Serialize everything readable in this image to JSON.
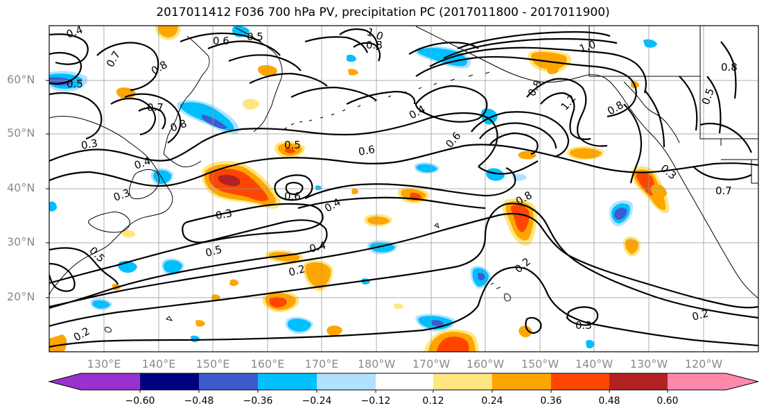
{
  "title": "2017011412 F036 700 hPa PV, precipitation PC (2017011800 - 2017011900)",
  "lat_labels": [
    "60°N",
    "50°N",
    "40°N",
    "30°N",
    "20°N"
  ],
  "lon_labels": [
    "130°E",
    "140°E",
    "150°E",
    "160°E",
    "170°E",
    "180°W",
    "170°W",
    "160°W",
    "150°W",
    "140°W",
    "130°W",
    "120°W"
  ],
  "colorbar": {
    "levels": [
      "−0.60",
      "−0.48",
      "−0.36",
      "−0.24",
      "−0.12",
      "0.12",
      "0.24",
      "0.36",
      "0.48",
      "0.60"
    ],
    "colors": [
      "#9932cc",
      "#000080",
      "#3c5ccd",
      "#00bfff",
      "#b0e2ff",
      "#ffffff",
      "#ffe680",
      "#ffa500",
      "#ff4500",
      "#b22222",
      "#ff88aa"
    ]
  },
  "contour_labels": [
    "0.4",
    "0.6",
    "0.5",
    "1.0",
    "0.8",
    "0.7",
    "0.8",
    "0.5",
    "0.7",
    "0.8",
    "0.3",
    "0.4",
    "0.3",
    "0.5",
    "0.6",
    "0.3",
    "0.4",
    "0.6",
    "0.8",
    "0.5",
    "0.4",
    "0.2",
    "0.4",
    "1.0",
    "1.2",
    "0.8",
    "0.6",
    "0.8",
    "0.5",
    "0.3",
    "0.8",
    "0.7",
    "0.2",
    "0.3",
    "0.2",
    "0.2",
    "0.5"
  ]
}
